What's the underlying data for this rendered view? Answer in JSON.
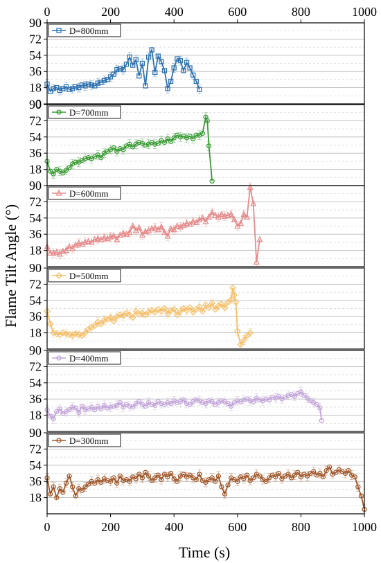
{
  "chart_data": {
    "type": "line",
    "xlabel": "Time (s)",
    "ylabel": "Flame Tilt Angle (°)",
    "xlim": [
      0,
      1000
    ],
    "ylim": [
      0,
      90
    ],
    "x_ticks": [
      "0",
      "200",
      "400",
      "600",
      "800",
      "1000"
    ],
    "y_ticks": [
      "0",
      "18",
      "36",
      "54",
      "72",
      "90"
    ],
    "grid": true,
    "legend_position": "top-left",
    "error_bars": true,
    "series": [
      {
        "name": "D=800mm",
        "color": "#2f72b0",
        "marker": "square",
        "x": [
          0,
          10,
          20,
          30,
          40,
          50,
          60,
          70,
          80,
          90,
          100,
          110,
          120,
          130,
          140,
          150,
          160,
          170,
          180,
          190,
          200,
          210,
          220,
          230,
          240,
          250,
          260,
          270,
          280,
          290,
          300,
          310,
          320,
          330,
          340,
          350,
          360,
          370,
          380,
          390,
          400,
          410,
          420,
          430,
          440,
          450,
          460,
          470,
          480
        ],
        "y": [
          22,
          14,
          17,
          18,
          15,
          17,
          19,
          16,
          17,
          19,
          18,
          21,
          20,
          22,
          21,
          20,
          23,
          24,
          26,
          27,
          30,
          33,
          38,
          39,
          38,
          44,
          52,
          43,
          49,
          31,
          45,
          20,
          52,
          60,
          35,
          53,
          47,
          37,
          17,
          25,
          40,
          50,
          48,
          37,
          46,
          40,
          32,
          25,
          16
        ]
      },
      {
        "name": "D=700mm",
        "color": "#3a9a35",
        "marker": "circle",
        "x": [
          0,
          10,
          20,
          30,
          40,
          50,
          60,
          70,
          80,
          90,
          100,
          110,
          120,
          130,
          140,
          150,
          160,
          170,
          180,
          190,
          200,
          210,
          220,
          230,
          240,
          250,
          260,
          270,
          280,
          290,
          300,
          310,
          320,
          330,
          340,
          350,
          360,
          370,
          380,
          390,
          400,
          410,
          420,
          430,
          440,
          450,
          460,
          470,
          480,
          490,
          500,
          505,
          510,
          520
        ],
        "y": [
          27,
          16,
          13,
          18,
          16,
          14,
          17,
          20,
          24,
          26,
          26,
          28,
          30,
          31,
          30,
          32,
          34,
          31,
          36,
          38,
          40,
          42,
          38,
          41,
          40,
          44,
          46,
          43,
          46,
          48,
          47,
          45,
          46,
          48,
          46,
          47,
          50,
          48,
          52,
          49,
          53,
          56,
          54,
          55,
          53,
          55,
          52,
          56,
          56,
          58,
          76,
          72,
          44,
          5
        ]
      },
      {
        "name": "D=600mm",
        "color": "#e58a8a",
        "marker": "triangle",
        "x": [
          0,
          10,
          20,
          30,
          40,
          50,
          60,
          70,
          80,
          90,
          100,
          110,
          120,
          130,
          140,
          150,
          160,
          170,
          180,
          190,
          200,
          210,
          220,
          230,
          240,
          250,
          260,
          270,
          280,
          290,
          300,
          310,
          320,
          330,
          340,
          350,
          360,
          370,
          380,
          390,
          400,
          410,
          420,
          430,
          440,
          450,
          460,
          470,
          480,
          490,
          500,
          510,
          520,
          530,
          540,
          550,
          560,
          570,
          580,
          590,
          600,
          610,
          620,
          630,
          640,
          650,
          660,
          670
        ],
        "y": [
          22,
          15,
          15,
          16,
          14,
          17,
          18,
          22,
          20,
          24,
          26,
          25,
          27,
          28,
          27,
          30,
          31,
          30,
          32,
          31,
          33,
          34,
          30,
          35,
          37,
          36,
          38,
          45,
          40,
          43,
          35,
          39,
          40,
          42,
          43,
          41,
          44,
          38,
          34,
          42,
          41,
          45,
          44,
          46,
          48,
          47,
          50,
          49,
          52,
          54,
          50,
          55,
          60,
          57,
          55,
          58,
          56,
          57,
          58,
          52,
          45,
          48,
          58,
          55,
          88,
          70,
          5,
          30
        ]
      },
      {
        "name": "D=500mm",
        "color": "#f5bf6a",
        "marker": "diamond",
        "x": [
          0,
          10,
          20,
          30,
          40,
          50,
          60,
          70,
          80,
          90,
          100,
          110,
          120,
          130,
          140,
          150,
          160,
          170,
          180,
          190,
          200,
          210,
          220,
          230,
          240,
          250,
          260,
          270,
          280,
          290,
          300,
          310,
          320,
          330,
          340,
          350,
          360,
          370,
          380,
          390,
          400,
          410,
          420,
          430,
          440,
          450,
          460,
          470,
          480,
          490,
          500,
          510,
          520,
          530,
          540,
          550,
          560,
          570,
          580,
          585,
          590,
          595,
          600,
          610,
          620,
          630,
          640
        ],
        "y": [
          42,
          28,
          18,
          17,
          16,
          18,
          17,
          16,
          15,
          17,
          16,
          15,
          18,
          22,
          24,
          26,
          30,
          28,
          32,
          33,
          35,
          31,
          36,
          38,
          37,
          40,
          38,
          35,
          42,
          39,
          40,
          38,
          41,
          43,
          41,
          44,
          42,
          45,
          39,
          43,
          44,
          38,
          42,
          45,
          43,
          46,
          41,
          44,
          47,
          42,
          49,
          46,
          51,
          44,
          48,
          50,
          46,
          52,
          55,
          68,
          60,
          52,
          20,
          5,
          10,
          15,
          18
        ]
      },
      {
        "name": "D=400mm",
        "color": "#c2a5d8",
        "marker": "circle",
        "x": [
          0,
          10,
          20,
          30,
          40,
          50,
          60,
          70,
          80,
          90,
          100,
          110,
          120,
          130,
          140,
          150,
          160,
          170,
          180,
          190,
          200,
          210,
          220,
          230,
          240,
          250,
          260,
          270,
          280,
          290,
          300,
          310,
          320,
          330,
          340,
          350,
          360,
          370,
          380,
          390,
          400,
          410,
          420,
          430,
          440,
          450,
          460,
          470,
          480,
          490,
          500,
          510,
          520,
          530,
          540,
          550,
          560,
          570,
          580,
          590,
          600,
          610,
          620,
          630,
          640,
          650,
          660,
          670,
          680,
          690,
          700,
          710,
          720,
          730,
          740,
          750,
          760,
          770,
          780,
          790,
          800,
          810,
          820,
          830,
          840,
          850,
          860,
          865
        ],
        "y": [
          24,
          17,
          14,
          22,
          25,
          20,
          22,
          24,
          27,
          26,
          21,
          28,
          24,
          25,
          27,
          24,
          28,
          25,
          29,
          26,
          27,
          28,
          29,
          32,
          27,
          30,
          28,
          27,
          31,
          33,
          30,
          28,
          32,
          30,
          29,
          33,
          31,
          30,
          32,
          31,
          34,
          32,
          33,
          35,
          31,
          30,
          33,
          35,
          34,
          32,
          31,
          34,
          33,
          30,
          32,
          34,
          33,
          31,
          28,
          32,
          34,
          33,
          35,
          36,
          34,
          33,
          37,
          35,
          34,
          36,
          35,
          38,
          37,
          39,
          36,
          38,
          40,
          41,
          39,
          42,
          44,
          40,
          37,
          34,
          32,
          30,
          26,
          12
        ]
      },
      {
        "name": "D=300mm",
        "color": "#a0582b",
        "marker": "circle",
        "x": [
          0,
          10,
          20,
          30,
          40,
          50,
          60,
          70,
          80,
          90,
          100,
          110,
          120,
          130,
          140,
          150,
          160,
          170,
          180,
          190,
          200,
          210,
          220,
          230,
          240,
          250,
          260,
          270,
          280,
          290,
          300,
          310,
          320,
          330,
          340,
          350,
          360,
          370,
          380,
          390,
          400,
          410,
          420,
          430,
          440,
          450,
          460,
          470,
          480,
          490,
          500,
          510,
          520,
          530,
          540,
          550,
          560,
          570,
          580,
          590,
          600,
          610,
          620,
          630,
          640,
          650,
          660,
          670,
          680,
          690,
          700,
          710,
          720,
          730,
          740,
          750,
          760,
          770,
          780,
          790,
          800,
          810,
          820,
          830,
          840,
          850,
          860,
          870,
          880,
          890,
          900,
          910,
          920,
          930,
          940,
          950,
          960,
          970,
          980,
          990,
          1000
        ],
        "y": [
          40,
          22,
          30,
          18,
          28,
          24,
          34,
          42,
          30,
          20,
          28,
          26,
          30,
          33,
          36,
          34,
          38,
          35,
          39,
          37,
          36,
          40,
          34,
          42,
          37,
          38,
          36,
          41,
          39,
          44,
          40,
          46,
          42,
          37,
          40,
          43,
          38,
          44,
          41,
          45,
          39,
          36,
          42,
          44,
          41,
          43,
          40,
          38,
          44,
          37,
          35,
          38,
          40,
          36,
          42,
          30,
          22,
          32,
          40,
          38,
          36,
          41,
          39,
          43,
          37,
          40,
          44,
          42,
          38,
          36,
          40,
          43,
          41,
          45,
          39,
          42,
          44,
          40,
          43,
          46,
          41,
          44,
          42,
          45,
          47,
          43,
          45,
          41,
          48,
          52,
          44,
          46,
          49,
          47,
          45,
          48,
          43,
          41,
          30,
          20,
          5
        ]
      }
    ]
  }
}
